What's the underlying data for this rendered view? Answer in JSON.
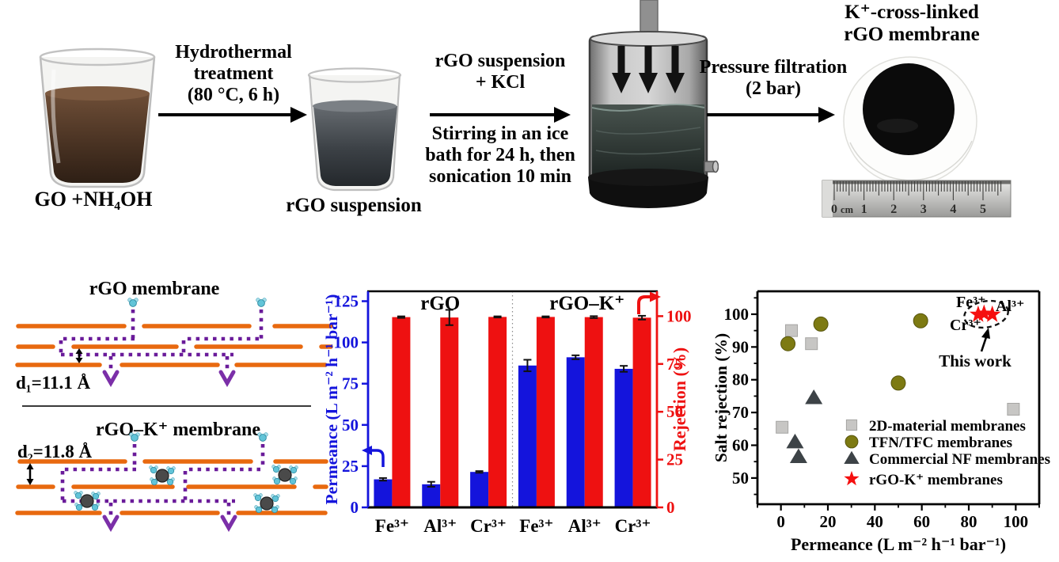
{
  "figure": {
    "synthesis": {
      "step1_label": "GO +NH₄OH",
      "arrow1_label": "Hydrothermal\ntreatment\n(80  °C, 6 h)",
      "step2_label": "rGO suspension",
      "arrow2_label_top": "rGO suspension\n+  KCl",
      "arrow2_label_bottom": "Stirring in an ice\nbath for 24 h, then\nsonication 10 min",
      "arrow3_label": "Pressure filtration\n(2 bar)",
      "product_title": "K⁺-cross-linked\nrGO membrane",
      "ruler": {
        "unit": "cm",
        "numbers": [
          "0",
          "1",
          "2",
          "3",
          "4",
          "5"
        ]
      }
    },
    "schematic": {
      "top_title": "rGO membrane",
      "top_spacing_label": "d₁=11.1 Å",
      "bottom_title": "rGO–K⁺ membrane",
      "bottom_spacing_label": "d₂=11.8 Å"
    }
  },
  "chart_data": [
    {
      "type": "bar",
      "panel": "middle",
      "categories": [
        "Fe³⁺",
        "Al³⁺",
        "Cr³⁺",
        "Fe³⁺",
        "Al³⁺",
        "Cr³⁺"
      ],
      "group_labels": [
        "rGO",
        "rGO–K⁺"
      ],
      "series": [
        {
          "name": "Permeance",
          "axis": "left",
          "color": "#1414dc",
          "values": [
            17,
            14,
            21.5,
            86,
            91,
            84
          ],
          "errors": [
            0.8,
            1.5,
            0.5,
            3.5,
            1.2,
            1.8
          ]
        },
        {
          "name": "Rejection",
          "axis": "right",
          "color": "#ee1111",
          "values": [
            99.5,
            99.3,
            99.6,
            99.6,
            99.5,
            99.2
          ],
          "errors": [
            0.4,
            4,
            0.3,
            0.3,
            0.5,
            1
          ]
        }
      ],
      "left_axis": {
        "label": "Permeance (L m⁻² h⁻¹ bar⁻¹)",
        "ticks": [
          0,
          25,
          50,
          75,
          100,
          125
        ],
        "max": 131
      },
      "right_axis": {
        "label": "Rejection (%)",
        "ticks": [
          0,
          25,
          50,
          75,
          100
        ],
        "max": 113
      },
      "grid": false
    },
    {
      "type": "scatter",
      "panel": "right",
      "xlabel": "Permeance (L m⁻² h⁻¹ bar⁻¹)",
      "ylabel": "Salt rejection (%)",
      "xlim": [
        -10,
        110
      ],
      "ylim": [
        42,
        107
      ],
      "xticks": [
        0,
        20,
        40,
        60,
        80,
        100
      ],
      "yticks": [
        50,
        60,
        70,
        80,
        90,
        100
      ],
      "legend_position": "inside-right",
      "grid": false,
      "series": [
        {
          "name": "2D-material membranes",
          "marker": "square",
          "color": "#c7c6c4",
          "points": [
            [
              0.5,
              65.5
            ],
            [
              4.5,
              95
            ],
            [
              13,
              91
            ],
            [
              99,
              71
            ]
          ]
        },
        {
          "name": "TFN/TFC membranes",
          "marker": "circle",
          "color": "#7d7a12",
          "points": [
            [
              3,
              91
            ],
            [
              17,
              97
            ],
            [
              50,
              79
            ],
            [
              59.5,
              98
            ]
          ]
        },
        {
          "name": "Commercial NF membranes",
          "marker": "triangle",
          "color": "#3d4347",
          "points": [
            [
              6,
              61
            ],
            [
              7.5,
              56.5
            ],
            [
              14,
              74.5
            ]
          ]
        },
        {
          "name": "rGO-K⁺ membranes",
          "marker": "star",
          "color": "#f50f0f",
          "points": [
            [
              84,
              99.9
            ],
            [
              86.5,
              100.2
            ],
            [
              90,
              99.9
            ]
          ]
        }
      ],
      "annotation": {
        "point_labels": [
          "Fe³⁺",
          "Al³⁺",
          "Cr³⁺"
        ],
        "callout": "This work"
      }
    }
  ],
  "colors": {
    "permeance_blue": "#1414dc",
    "rejection_red": "#ee1111",
    "go_sheet_orange": "#e8690f",
    "water_path_purple": "#6a1b9a",
    "tfn_olive": "#7d7a12",
    "gray_2d": "#c7c6c4",
    "nf_dark": "#3d4347",
    "star_red": "#f50f0f"
  }
}
